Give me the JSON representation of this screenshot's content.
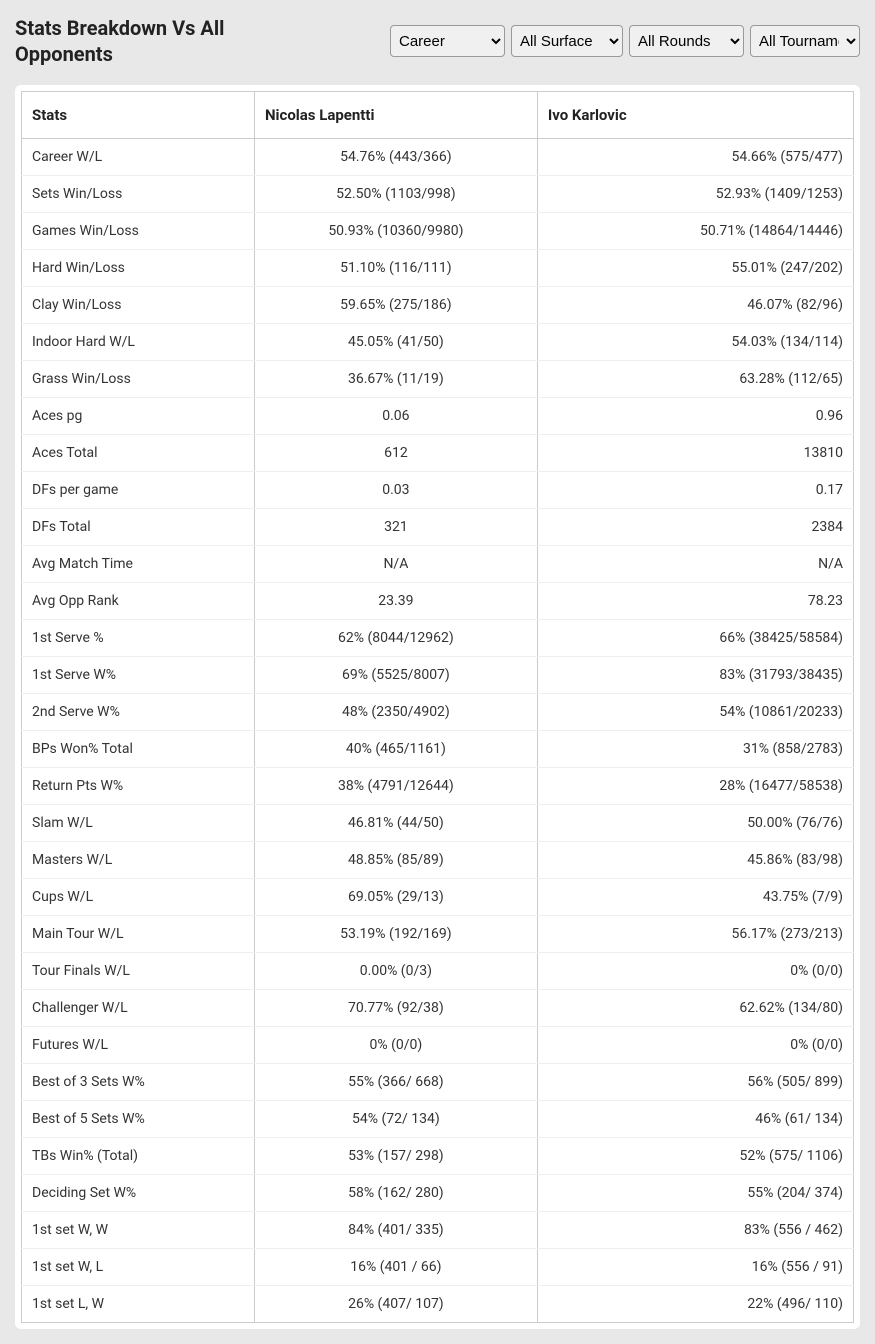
{
  "header": {
    "title": "Stats Breakdown Vs All Opponents"
  },
  "filters": {
    "career": {
      "selected": "Career",
      "options": [
        "Career"
      ]
    },
    "surface": {
      "selected": "All Surface",
      "options": [
        "All Surface"
      ]
    },
    "rounds": {
      "selected": "All Rounds",
      "options": [
        "All Rounds"
      ]
    },
    "tournaments": {
      "selected": "All Tournaments",
      "options": [
        "All Tournaments"
      ]
    }
  },
  "table": {
    "columns": [
      "Stats",
      "Nicolas Lapentti",
      "Ivo Karlovic"
    ],
    "rows": [
      [
        "Career W/L",
        "54.76% (443/366)",
        "54.66% (575/477)"
      ],
      [
        "Sets Win/Loss",
        "52.50% (1103/998)",
        "52.93% (1409/1253)"
      ],
      [
        "Games Win/Loss",
        "50.93% (10360/9980)",
        "50.71% (14864/14446)"
      ],
      [
        "Hard Win/Loss",
        "51.10% (116/111)",
        "55.01% (247/202)"
      ],
      [
        "Clay Win/Loss",
        "59.65% (275/186)",
        "46.07% (82/96)"
      ],
      [
        "Indoor Hard W/L",
        "45.05% (41/50)",
        "54.03% (134/114)"
      ],
      [
        "Grass Win/Loss",
        "36.67% (11/19)",
        "63.28% (112/65)"
      ],
      [
        "Aces pg",
        "0.06",
        "0.96"
      ],
      [
        "Aces Total",
        "612",
        "13810"
      ],
      [
        "DFs per game",
        "0.03",
        "0.17"
      ],
      [
        "DFs Total",
        "321",
        "2384"
      ],
      [
        "Avg Match Time",
        "N/A",
        "N/A"
      ],
      [
        "Avg Opp Rank",
        "23.39",
        "78.23"
      ],
      [
        "1st Serve %",
        "62% (8044/12962)",
        "66% (38425/58584)"
      ],
      [
        "1st Serve W%",
        "69% (5525/8007)",
        "83% (31793/38435)"
      ],
      [
        "2nd Serve W%",
        "48% (2350/4902)",
        "54% (10861/20233)"
      ],
      [
        "BPs Won% Total",
        "40% (465/1161)",
        "31% (858/2783)"
      ],
      [
        "Return Pts W%",
        "38% (4791/12644)",
        "28% (16477/58538)"
      ],
      [
        "Slam W/L",
        "46.81% (44/50)",
        "50.00% (76/76)"
      ],
      [
        "Masters W/L",
        "48.85% (85/89)",
        "45.86% (83/98)"
      ],
      [
        "Cups W/L",
        "69.05% (29/13)",
        "43.75% (7/9)"
      ],
      [
        "Main Tour W/L",
        "53.19% (192/169)",
        "56.17% (273/213)"
      ],
      [
        "Tour Finals W/L",
        "0.00% (0/3)",
        "0% (0/0)"
      ],
      [
        "Challenger W/L",
        "70.77% (92/38)",
        "62.62% (134/80)"
      ],
      [
        "Futures W/L",
        "0% (0/0)",
        "0% (0/0)"
      ],
      [
        "Best of 3 Sets W%",
        "55% (366/ 668)",
        "56% (505/ 899)"
      ],
      [
        "Best of 5 Sets W%",
        "54% (72/ 134)",
        "46% (61/ 134)"
      ],
      [
        "TBs Win% (Total)",
        "53% (157/ 298)",
        "52% (575/ 1106)"
      ],
      [
        "Deciding Set W%",
        "58% (162/ 280)",
        "55% (204/ 374)"
      ],
      [
        "1st set W, W",
        "84% (401/ 335)",
        "83% (556 / 462)"
      ],
      [
        "1st set W, L",
        "16% (401 / 66)",
        "16% (556 / 91)"
      ],
      [
        "1st set L, W",
        "26% (407/ 107)",
        "22% (496/ 110)"
      ]
    ]
  },
  "styling": {
    "background_color": "#e8e8e8",
    "table_background": "#ffffff",
    "border_color": "#cccccc",
    "row_separator": "#eeeeee",
    "text_color": "#222222",
    "header_fontsize": 20,
    "body_fontsize": 14
  }
}
